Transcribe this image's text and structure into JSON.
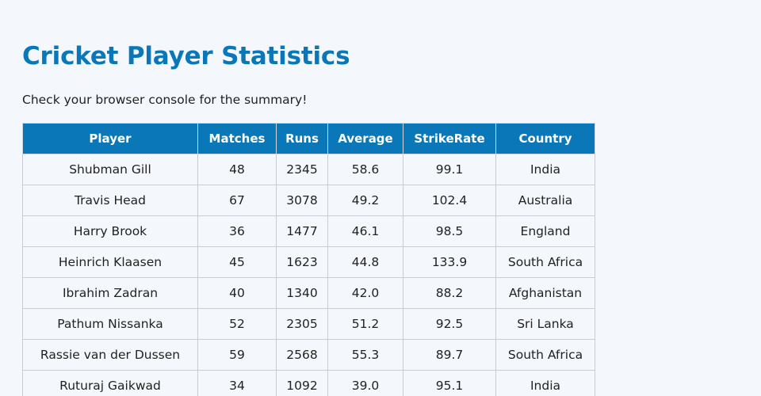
{
  "page": {
    "title": "Cricket Player Statistics",
    "subtitle": "Check your browser console for the summary!"
  },
  "table": {
    "headers": [
      "Player",
      "Matches",
      "Runs",
      "Average",
      "StrikeRate",
      "Country"
    ],
    "rows": [
      [
        "Shubman Gill",
        "48",
        "2345",
        "58.6",
        "99.1",
        "India"
      ],
      [
        "Travis Head",
        "67",
        "3078",
        "49.2",
        "102.4",
        "Australia"
      ],
      [
        "Harry Brook",
        "36",
        "1477",
        "46.1",
        "98.5",
        "England"
      ],
      [
        "Heinrich Klaasen",
        "45",
        "1623",
        "44.8",
        "133.9",
        "South Africa"
      ],
      [
        "Ibrahim Zadran",
        "40",
        "1340",
        "42.0",
        "88.2",
        "Afghanistan"
      ],
      [
        "Pathum Nissanka",
        "52",
        "2305",
        "51.2",
        "92.5",
        "Sri Lanka"
      ],
      [
        "Rassie van der Dussen",
        "59",
        "2568",
        "55.3",
        "89.7",
        "South Africa"
      ],
      [
        "Ruturaj Gaikwad",
        "34",
        "1092",
        "39.0",
        "95.1",
        "India"
      ]
    ]
  },
  "colors": {
    "accent": "#0a78b8",
    "background": "#f4f7fb"
  }
}
